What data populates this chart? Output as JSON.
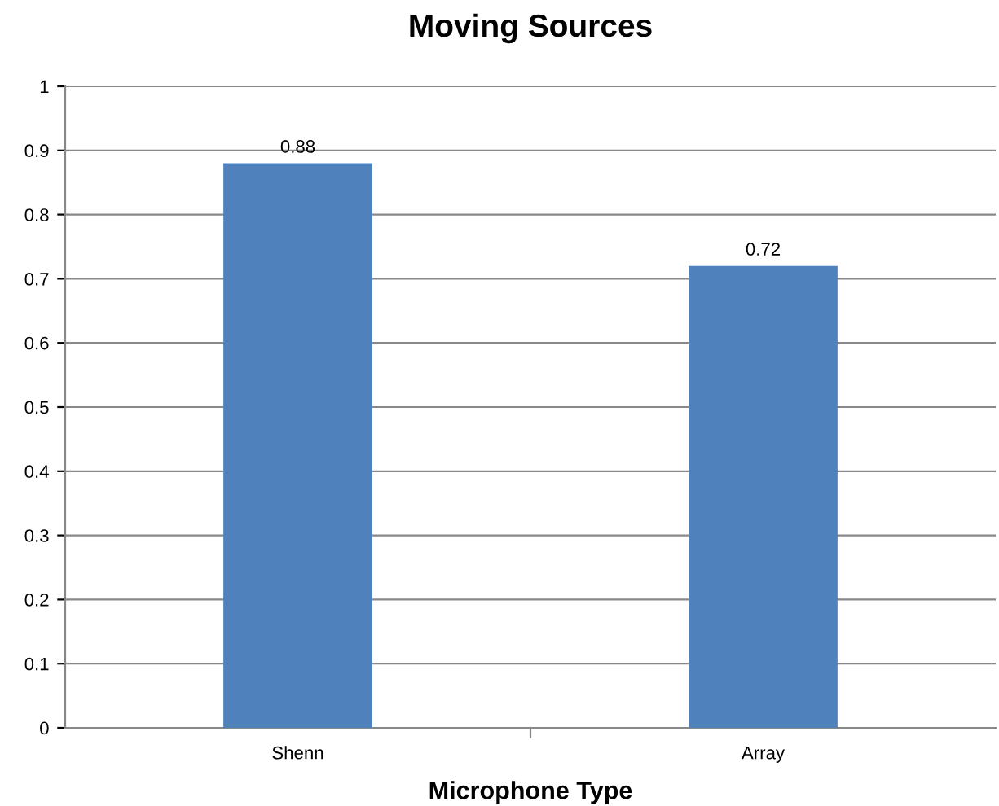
{
  "chart_data": {
    "type": "bar",
    "title": "Moving Sources",
    "xlabel": "Microphone Type",
    "categories": [
      "Shenn",
      "Array"
    ],
    "values": [
      0.88,
      0.72
    ],
    "color": "#4f81bd",
    "ylim": [
      0,
      1
    ],
    "yticks": [
      0,
      0.1,
      0.2,
      0.3,
      0.4,
      0.5,
      0.6,
      0.7,
      0.8,
      0.9,
      1
    ],
    "grid": "y",
    "data_labels": true
  }
}
